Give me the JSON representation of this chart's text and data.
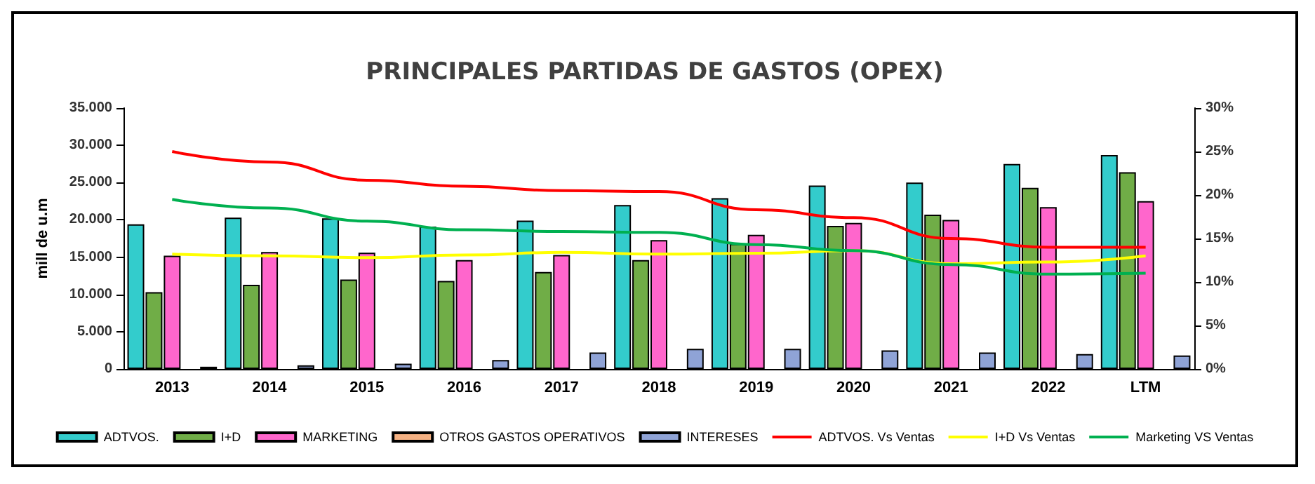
{
  "chart_data": {
    "type": "bar",
    "title": "PRINCIPALES PARTIDAS DE GASTOS (OPEX)",
    "ylabel": "mill de u.m",
    "categories": [
      "2013",
      "2014",
      "2015",
      "2016",
      "2017",
      "2018",
      "2019",
      "2020",
      "2021",
      "2022",
      "LTM"
    ],
    "series": [
      {
        "name": "ADTVOS.",
        "color": "#33cccc",
        "values": [
          19400,
          20300,
          20200,
          19100,
          19900,
          22000,
          22900,
          24600,
          25000,
          27500,
          28700
        ]
      },
      {
        "name": "I+D",
        "color": "#70ad47",
        "values": [
          10300,
          11300,
          12000,
          11800,
          13000,
          14600,
          16800,
          19200,
          20700,
          24300,
          26400
        ]
      },
      {
        "name": "MARKETING",
        "color": "#ff66cc",
        "values": [
          15200,
          15700,
          15600,
          14600,
          15300,
          17300,
          18000,
          19600,
          20000,
          21700,
          22500
        ]
      },
      {
        "name": "OTROS GASTOS OPERATIVOS",
        "color": "#f4b183",
        "values": [
          null,
          null,
          null,
          null,
          null,
          null,
          null,
          null,
          null,
          null,
          null
        ]
      },
      {
        "name": "INTERESES",
        "color": "#8fa3d6",
        "values": [
          300,
          500,
          700,
          1200,
          2200,
          2700,
          2700,
          2500,
          2200,
          2000,
          1800
        ]
      },
      {
        "name": "ADTVOS. Vs Ventas",
        "type": "line",
        "axis": "y2",
        "color": "#ff0000",
        "values": [
          25.0,
          23.8,
          21.7,
          21.0,
          20.5,
          20.4,
          18.3,
          17.4,
          15.0,
          14.0,
          14.0
        ]
      },
      {
        "name": "I+D Vs Ventas",
        "type": "line",
        "axis": "y2",
        "color": "#ffff00",
        "values": [
          13.2,
          13.0,
          12.8,
          13.1,
          13.4,
          13.2,
          13.3,
          13.6,
          12.1,
          12.3,
          13.0
        ]
      },
      {
        "name": "Marketing VS Ventas",
        "type": "line",
        "axis": "y2",
        "color": "#00b050",
        "values": [
          19.5,
          18.5,
          17.0,
          16.0,
          15.8,
          15.7,
          14.3,
          13.6,
          12.0,
          10.9,
          11.0
        ]
      }
    ],
    "ylim": [
      0,
      35000
    ],
    "yticks": [
      {
        "value": 0,
        "label": "0"
      },
      {
        "value": 5000,
        "label": "5.000"
      },
      {
        "value": 10000,
        "label": "10.000"
      },
      {
        "value": 15000,
        "label": "15.000"
      },
      {
        "value": 20000,
        "label": "20.000"
      },
      {
        "value": 25000,
        "label": "25.000"
      },
      {
        "value": 30000,
        "label": "30.000"
      },
      {
        "value": 35000,
        "label": "35.000"
      }
    ],
    "y2lim": [
      0,
      30
    ],
    "y2ticks": [
      {
        "value": 0,
        "label": "0%"
      },
      {
        "value": 5,
        "label": "5%"
      },
      {
        "value": 10,
        "label": "10%"
      },
      {
        "value": 15,
        "label": "15%"
      },
      {
        "value": 20,
        "label": "20%"
      },
      {
        "value": 25,
        "label": "25%"
      },
      {
        "value": 30,
        "label": "30%"
      }
    ],
    "legend": "bottom",
    "grid": false,
    "marker": "none",
    "line_style": "solid"
  }
}
